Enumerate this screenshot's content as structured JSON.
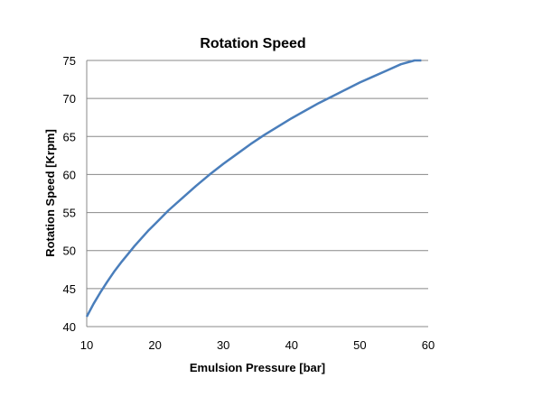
{
  "chart_data": {
    "type": "line",
    "title": "Rotation Speed",
    "xlabel": "Emulsion Pressure [bar]",
    "ylabel": "Rotation Speed [Krpm]",
    "xlim": [
      10,
      60
    ],
    "ylim": [
      40,
      75
    ],
    "xticks": [
      10,
      20,
      30,
      40,
      50,
      60
    ],
    "yticks": [
      40,
      45,
      50,
      55,
      60,
      65,
      70,
      75
    ],
    "grid": "horizontal",
    "legend": "none",
    "series": [
      {
        "color": "#4a7ebb",
        "x": [
          10,
          11,
          12,
          13,
          14,
          15,
          16,
          17,
          18,
          19,
          20,
          22,
          24,
          26,
          28,
          30,
          32,
          34,
          36,
          38,
          40,
          42,
          44,
          46,
          48,
          50,
          52,
          54,
          56,
          58,
          59
        ],
        "y": [
          41.3,
          43.0,
          44.5,
          45.9,
          47.2,
          48.4,
          49.5,
          50.6,
          51.6,
          52.6,
          53.5,
          55.3,
          56.9,
          58.5,
          60.0,
          61.4,
          62.7,
          64.0,
          65.2,
          66.3,
          67.4,
          68.4,
          69.4,
          70.3,
          71.2,
          72.1,
          72.9,
          73.7,
          74.5,
          75.3,
          75.6
        ]
      }
    ]
  }
}
